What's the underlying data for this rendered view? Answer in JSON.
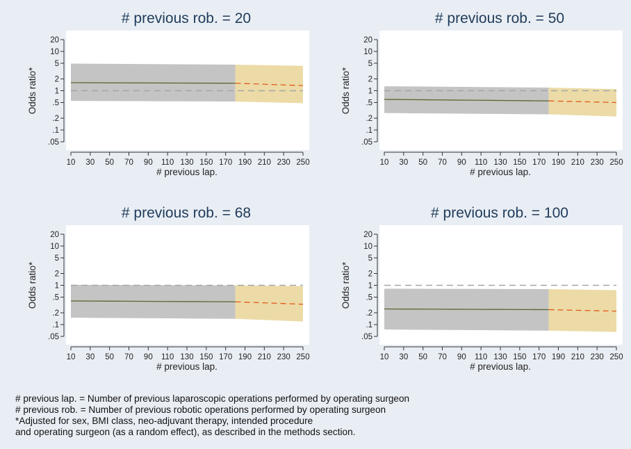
{
  "chart_data": [
    {
      "type": "line",
      "title": "# previous rob. = 20",
      "xlabel": "# previous lap.",
      "ylabel": "Odds ratio*",
      "y_scale": "log",
      "ylim": [
        0.05,
        20
      ],
      "yticks": [
        0.05,
        0.1,
        0.2,
        0.5,
        1,
        2,
        5,
        10,
        20
      ],
      "ytick_labels": [
        ".05",
        ".1",
        ".2",
        ".5",
        "1",
        "2",
        "5",
        "10",
        "20"
      ],
      "xlim": [
        10,
        250
      ],
      "xticks": [
        10,
        30,
        50,
        70,
        90,
        110,
        130,
        150,
        170,
        190,
        210,
        230,
        250
      ],
      "xtick_labels": [
        "10",
        "30",
        "50",
        "70",
        "90",
        "110",
        "130",
        "150",
        "170",
        "190",
        "210",
        "230",
        "250"
      ],
      "reference_line": 1,
      "split_x": 180,
      "series": [
        {
          "x": [
            10,
            180,
            250
          ],
          "estimate": [
            1.6,
            1.55,
            1.35
          ],
          "lower": [
            0.55,
            0.53,
            0.48
          ],
          "upper": [
            4.9,
            4.6,
            4.3
          ]
        }
      ]
    },
    {
      "type": "line",
      "title": "# previous rob. = 50",
      "xlabel": "# previous lap.",
      "ylabel": "Odds ratio*",
      "y_scale": "log",
      "ylim": [
        0.05,
        20
      ],
      "yticks": [
        0.05,
        0.1,
        0.2,
        0.5,
        1,
        2,
        5,
        10,
        20
      ],
      "ytick_labels": [
        ".05",
        ".1",
        ".2",
        ".5",
        "1",
        "2",
        "5",
        "10",
        "20"
      ],
      "xlim": [
        10,
        250
      ],
      "xticks": [
        10,
        30,
        50,
        70,
        90,
        110,
        130,
        150,
        170,
        190,
        210,
        230,
        250
      ],
      "xtick_labels": [
        "10",
        "30",
        "50",
        "70",
        "90",
        "110",
        "130",
        "150",
        "170",
        "190",
        "210",
        "230",
        "250"
      ],
      "reference_line": 1,
      "split_x": 180,
      "series": [
        {
          "x": [
            10,
            180,
            250
          ],
          "estimate": [
            0.6,
            0.55,
            0.5
          ],
          "lower": [
            0.27,
            0.25,
            0.22
          ],
          "upper": [
            1.3,
            1.2,
            1.1
          ]
        }
      ]
    },
    {
      "type": "line",
      "title": "# previous rob. = 68",
      "xlabel": "# previous lap.",
      "ylabel": "Odds ratio*",
      "y_scale": "log",
      "ylim": [
        0.05,
        20
      ],
      "yticks": [
        0.05,
        0.1,
        0.2,
        0.5,
        1,
        2,
        5,
        10,
        20
      ],
      "ytick_labels": [
        ".05",
        ".1",
        ".2",
        ".5",
        "1",
        "2",
        "5",
        "10",
        "20"
      ],
      "xlim": [
        10,
        250
      ],
      "xticks": [
        10,
        30,
        50,
        70,
        90,
        110,
        130,
        150,
        170,
        190,
        210,
        230,
        250
      ],
      "xtick_labels": [
        "10",
        "30",
        "50",
        "70",
        "90",
        "110",
        "130",
        "150",
        "170",
        "190",
        "210",
        "230",
        "250"
      ],
      "reference_line": 1,
      "split_x": 180,
      "series": [
        {
          "x": [
            10,
            180,
            250
          ],
          "estimate": [
            0.4,
            0.38,
            0.33
          ],
          "lower": [
            0.15,
            0.14,
            0.12
          ],
          "upper": [
            1.03,
            1.0,
            0.95
          ]
        }
      ]
    },
    {
      "type": "line",
      "title": "# previous rob. = 100",
      "xlabel": "# previous lap.",
      "ylabel": "Odds ratio*",
      "y_scale": "log",
      "ylim": [
        0.05,
        20
      ],
      "yticks": [
        0.05,
        0.1,
        0.2,
        0.5,
        1,
        2,
        5,
        10,
        20
      ],
      "ytick_labels": [
        ".05",
        ".1",
        ".2",
        ".5",
        "1",
        "2",
        "5",
        "10",
        "20"
      ],
      "xlim": [
        10,
        250
      ],
      "xticks": [
        10,
        30,
        50,
        70,
        90,
        110,
        130,
        150,
        170,
        190,
        210,
        230,
        250
      ],
      "xtick_labels": [
        "10",
        "30",
        "50",
        "70",
        "90",
        "110",
        "130",
        "150",
        "170",
        "190",
        "210",
        "230",
        "250"
      ],
      "reference_line": 1,
      "split_x": 180,
      "series": [
        {
          "x": [
            10,
            180,
            250
          ],
          "estimate": [
            0.25,
            0.24,
            0.22
          ],
          "lower": [
            0.075,
            0.07,
            0.065
          ],
          "upper": [
            0.82,
            0.8,
            0.75
          ]
        }
      ]
    }
  ],
  "colors": {
    "background": "#e9eef4",
    "plot_area": "#ffffff",
    "band_observed": "#c4c4c4",
    "band_extrapolated": "#ecdba6",
    "line_observed": "#58672e",
    "line_extrapolated": "#e05a1c",
    "reference": "#a6a6a6",
    "title": "#1f3b5a"
  },
  "notes": [
    "# previous lap. = Number of previous laparoscopic operations performed by operating surgeon",
    "# previous rob. = Number of previous robotic operations performed by operating surgeon",
    "*Adjusted for sex, BMI class, neo-adjuvant therapy, intended procedure",
    "and operating surgeon (as a random effect), as described in the methods section."
  ]
}
